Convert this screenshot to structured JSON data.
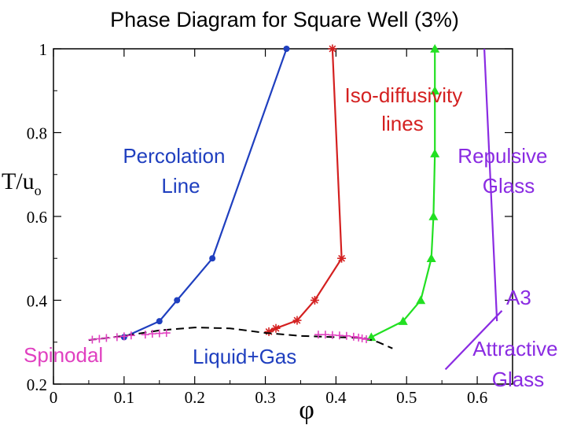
{
  "chart_data": {
    "type": "line",
    "title": "Phase Diagram for Square Well  (3%)",
    "xlabel": "φ",
    "ylabel": "T/u",
    "ylabel_sub": "o",
    "xlim": [
      0,
      0.65
    ],
    "ylim": [
      0.2,
      1.0
    ],
    "x_ticks": [
      0,
      0.1,
      0.2,
      0.3,
      0.4,
      0.5,
      0.6
    ],
    "x_tick_labels": [
      "0",
      "0.1",
      "0.2",
      "0.3",
      "0.4",
      "0.5",
      "0.6"
    ],
    "y_ticks": [
      0.2,
      0.4,
      0.6,
      0.8,
      1.0
    ],
    "y_tick_labels": [
      "0.2",
      "0.4",
      "0.6",
      "0.8",
      "1"
    ],
    "grid": false,
    "legend": "none",
    "series": [
      {
        "color": "#1f3fbf",
        "marker": "circle",
        "x": [
          0.1,
          0.15,
          0.175,
          0.225,
          0.33
        ],
        "y": [
          0.312,
          0.35,
          0.4,
          0.5,
          1.0
        ]
      },
      {
        "color": "#d42020",
        "marker": "star",
        "x": [
          0.305,
          0.315,
          0.345,
          0.37,
          0.408,
          0.395
        ],
        "y": [
          0.325,
          0.333,
          0.352,
          0.4,
          0.5,
          1.0
        ]
      },
      {
        "color": "#22e022",
        "marker": "triangle",
        "x": [
          0.45,
          0.495,
          0.52,
          0.535,
          0.538,
          0.54,
          0.54,
          0.54
        ],
        "y": [
          0.312,
          0.35,
          0.4,
          0.5,
          0.6,
          0.75,
          0.9,
          1.0
        ]
      },
      {
        "color": "#8a2be2",
        "marker": "none",
        "x": [
          0.61,
          0.628
        ],
        "y": [
          1.0,
          0.35
        ]
      },
      {
        "color": "#8a2be2",
        "marker": "none",
        "x": [
          0.555,
          0.635
        ],
        "y": [
          0.235,
          0.375
        ]
      },
      {
        "color": "#000000",
        "marker": "none",
        "dashed": true,
        "x": [
          0.05,
          0.1,
          0.15,
          0.2,
          0.25,
          0.3,
          0.35,
          0.4,
          0.44,
          0.46,
          0.48
        ],
        "y": [
          0.305,
          0.315,
          0.328,
          0.335,
          0.333,
          0.322,
          0.315,
          0.312,
          0.31,
          0.3,
          0.285
        ]
      },
      {
        "color": "#e040c0",
        "marker": "plus",
        "x": [
          0.055,
          0.065,
          0.075,
          0.09,
          0.1,
          0.11,
          0.13,
          0.14,
          0.15,
          0.16,
          0.375,
          0.385,
          0.395,
          0.405,
          0.415,
          0.425,
          0.432,
          0.437,
          0.443
        ],
        "y": [
          0.306,
          0.308,
          0.31,
          0.312,
          0.314,
          0.316,
          0.318,
          0.32,
          0.321,
          0.322,
          0.318,
          0.318,
          0.317,
          0.316,
          0.315,
          0.313,
          0.311,
          0.309,
          0.307
        ]
      }
    ],
    "annotations": {
      "percolation": [
        "Percolation",
        "Line"
      ],
      "iso": [
        "Iso-diffusivity",
        "lines"
      ],
      "repulsive": [
        "Repulsive",
        "Glass"
      ],
      "a3": "A3",
      "attractive": [
        "Attractive",
        "Glass"
      ],
      "spinodal": "Spinodal",
      "liquid_gas": "Liquid+Gas"
    }
  }
}
